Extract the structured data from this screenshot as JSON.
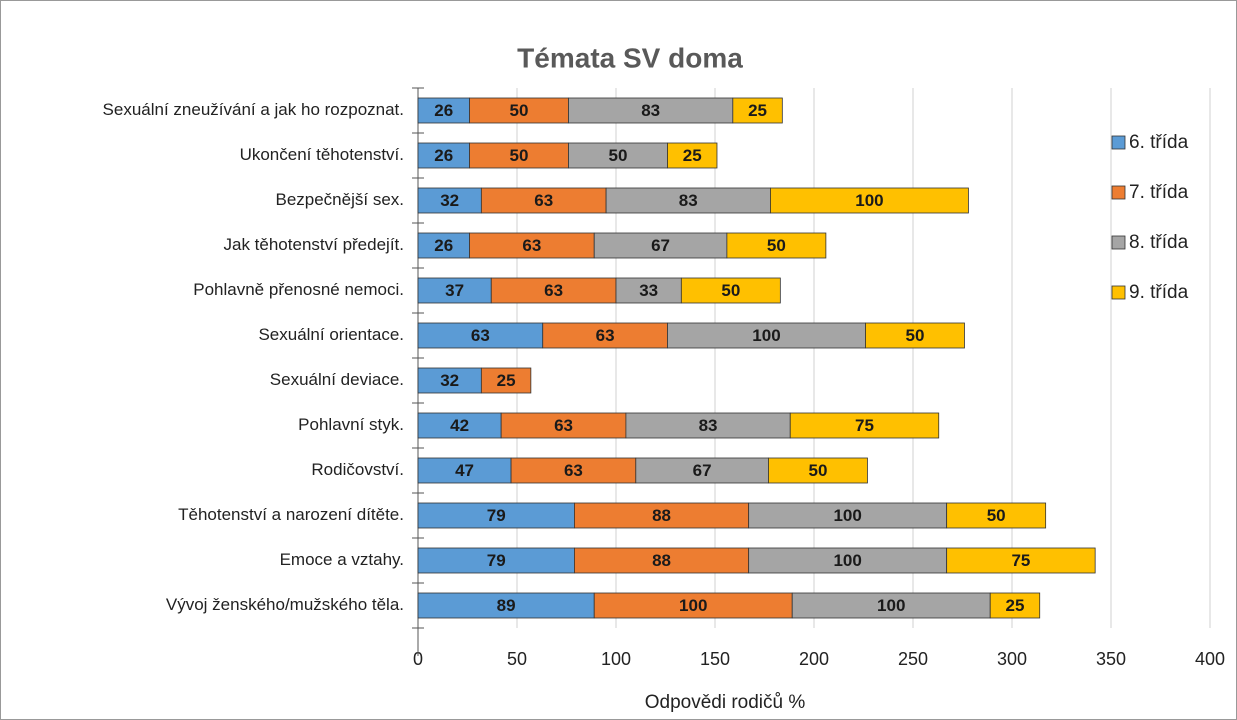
{
  "chart_data": {
    "type": "stacked_barh",
    "title": "Témata SV doma",
    "xlabel": "Odpovědi rodičů %",
    "categories": [
      "Sexuální zneužívání a jak ho rozpoznat.",
      "Ukončení těhotenství.",
      "Bezpečnější sex.",
      "Jak těhotenství předejít.",
      "Pohlavně přenosné nemoci.",
      "Sexuální orientace.",
      "Sexuální deviace.",
      "Pohlavní styk.",
      "Rodičovství.",
      "Těhotenství a narození dítěte.",
      "Emoce a vztahy.",
      "Vývoj ženského/mužského těla."
    ],
    "series": [
      {
        "name": "6. třída",
        "color": "#5b9bd5",
        "values": [
          26,
          26,
          32,
          26,
          37,
          63,
          32,
          42,
          47,
          79,
          79,
          89
        ]
      },
      {
        "name": "7. třída",
        "color": "#ed7d31",
        "values": [
          50,
          50,
          63,
          63,
          63,
          63,
          25,
          63,
          63,
          88,
          88,
          100
        ]
      },
      {
        "name": "8. třída",
        "color": "#a5a5a5",
        "values": [
          83,
          50,
          83,
          67,
          33,
          100,
          null,
          83,
          67,
          100,
          100,
          100
        ]
      },
      {
        "name": "9. třída",
        "color": "#ffc000",
        "values": [
          25,
          25,
          100,
          50,
          50,
          50,
          null,
          75,
          50,
          50,
          75,
          25
        ]
      }
    ],
    "xlim": [
      0,
      400
    ],
    "xticks": [
      0,
      50,
      100,
      150,
      200,
      250,
      300,
      350,
      400
    ],
    "grid": true,
    "legend": "right"
  }
}
